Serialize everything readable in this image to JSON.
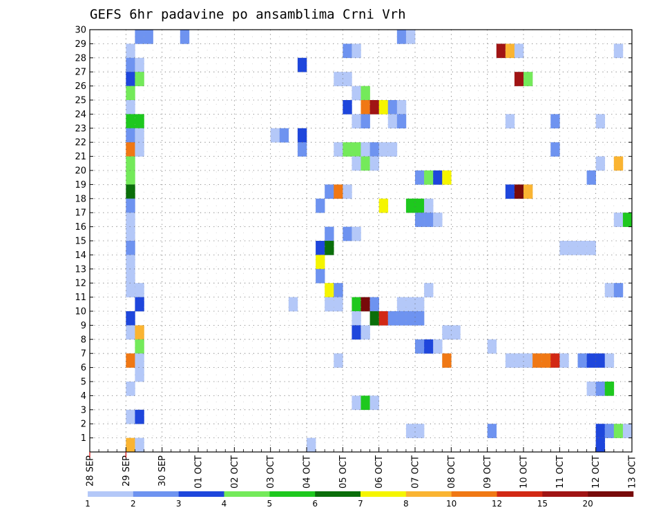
{
  "chart_data": {
    "type": "heatmap",
    "title": "GEFS 6hr padavine po ansamblima Crni Vrh",
    "xlabel": "",
    "ylabel": "",
    "x_ticks": [
      "28 SEP",
      "29 SEP",
      "30 SEP",
      "01 OCT",
      "02 OCT",
      "03 OCT",
      "04 OCT",
      "05 OCT",
      "06 OCT",
      "07 OCT",
      "08 OCT",
      "09 OCT",
      "10 OCT",
      "11 OCT",
      "12 OCT",
      "13 OCT"
    ],
    "y_ticks": [
      "1",
      "2",
      "3",
      "4",
      "5",
      "6",
      "7",
      "8",
      "9",
      "10",
      "11",
      "12",
      "13",
      "14",
      "15",
      "16",
      "17",
      "18",
      "19",
      "20",
      "21",
      "22",
      "23",
      "24",
      "25",
      "26",
      "27",
      "28",
      "29",
      "30"
    ],
    "y_range": [
      0,
      30
    ],
    "grid": true,
    "colorbar_labels": [
      "1",
      "2",
      "3",
      "4",
      "5",
      "6",
      "7",
      "8",
      "10",
      "12",
      "15",
      "20"
    ],
    "colorbar_colors": [
      "#b4c8f8",
      "#6e93f0",
      "#1e46dc",
      "#74ea5a",
      "#1ec81e",
      "#0a6e0a",
      "#f5f500",
      "#fab432",
      "#f07814",
      "#d22814",
      "#a01414",
      "#780a0a"
    ],
    "note": "cells: member (y), 6-hourly step (x from 29 SEP 00z), intensity class index into colorbar",
    "cells": [
      [
        30,
        1,
        1
      ],
      [
        30,
        2,
        1
      ],
      [
        30,
        6,
        1
      ],
      [
        30,
        30,
        1
      ],
      [
        30,
        31,
        0
      ],
      [
        29,
        0,
        0
      ],
      [
        29,
        24,
        1
      ],
      [
        29,
        25,
        0
      ],
      [
        29,
        41,
        10
      ],
      [
        29,
        42,
        7
      ],
      [
        29,
        43,
        0
      ],
      [
        29,
        54,
        0
      ],
      [
        29,
        58,
        4
      ],
      [
        29,
        59,
        11
      ],
      [
        29,
        60,
        10
      ],
      [
        28,
        0,
        1
      ],
      [
        28,
        1,
        0
      ],
      [
        28,
        19,
        2
      ],
      [
        27,
        0,
        2
      ],
      [
        27,
        1,
        3
      ],
      [
        27,
        23,
        0
      ],
      [
        27,
        24,
        0
      ],
      [
        27,
        43,
        10
      ],
      [
        27,
        44,
        3
      ],
      [
        27,
        60,
        0
      ],
      [
        26,
        0,
        3
      ],
      [
        26,
        25,
        0
      ],
      [
        26,
        26,
        3
      ],
      [
        25,
        0,
        0
      ],
      [
        25,
        24,
        2
      ],
      [
        25,
        26,
        8
      ],
      [
        25,
        27,
        10
      ],
      [
        25,
        28,
        6
      ],
      [
        25,
        29,
        1
      ],
      [
        25,
        30,
        0
      ],
      [
        24,
        0,
        4
      ],
      [
        24,
        1,
        4
      ],
      [
        24,
        25,
        0
      ],
      [
        24,
        26,
        1
      ],
      [
        24,
        29,
        0
      ],
      [
        24,
        30,
        1
      ],
      [
        24,
        42,
        0
      ],
      [
        24,
        47,
        1
      ],
      [
        24,
        52,
        0
      ],
      [
        23,
        0,
        1
      ],
      [
        23,
        1,
        0
      ],
      [
        23,
        16,
        0
      ],
      [
        23,
        17,
        1
      ],
      [
        23,
        19,
        2
      ],
      [
        22,
        0,
        8
      ],
      [
        22,
        1,
        0
      ],
      [
        22,
        19,
        1
      ],
      [
        22,
        23,
        0
      ],
      [
        22,
        24,
        3
      ],
      [
        22,
        25,
        3
      ],
      [
        22,
        26,
        0
      ],
      [
        22,
        27,
        1
      ],
      [
        22,
        28,
        0
      ],
      [
        22,
        29,
        0
      ],
      [
        22,
        47,
        1
      ],
      [
        21,
        0,
        3
      ],
      [
        21,
        25,
        0
      ],
      [
        21,
        26,
        3
      ],
      [
        21,
        27,
        0
      ],
      [
        21,
        52,
        0
      ],
      [
        21,
        54,
        7
      ],
      [
        20,
        0,
        3
      ],
      [
        20,
        32,
        1
      ],
      [
        20,
        33,
        3
      ],
      [
        20,
        34,
        2
      ],
      [
        20,
        35,
        6
      ],
      [
        20,
        51,
        1
      ],
      [
        20,
        56,
        0
      ],
      [
        19,
        0,
        5
      ],
      [
        19,
        22,
        1
      ],
      [
        19,
        23,
        8
      ],
      [
        19,
        24,
        0
      ],
      [
        19,
        42,
        2
      ],
      [
        19,
        43,
        11
      ],
      [
        19,
        44,
        7
      ],
      [
        18,
        0,
        1
      ],
      [
        18,
        21,
        1
      ],
      [
        18,
        28,
        6
      ],
      [
        18,
        31,
        4
      ],
      [
        18,
        32,
        4
      ],
      [
        18,
        33,
        0
      ],
      [
        17,
        0,
        0
      ],
      [
        17,
        32,
        1
      ],
      [
        17,
        33,
        1
      ],
      [
        17,
        34,
        0
      ],
      [
        17,
        54,
        0
      ],
      [
        17,
        55,
        4
      ],
      [
        16,
        0,
        0
      ],
      [
        16,
        22,
        1
      ],
      [
        16,
        24,
        1
      ],
      [
        16,
        25,
        0
      ],
      [
        15,
        0,
        1
      ],
      [
        15,
        21,
        2
      ],
      [
        15,
        22,
        5
      ],
      [
        15,
        48,
        0
      ],
      [
        15,
        49,
        0
      ],
      [
        15,
        50,
        0
      ],
      [
        15,
        51,
        0
      ],
      [
        14,
        0,
        0
      ],
      [
        14,
        21,
        6
      ],
      [
        13,
        0,
        0
      ],
      [
        13,
        21,
        1
      ],
      [
        12,
        0,
        0
      ],
      [
        12,
        1,
        0
      ],
      [
        12,
        22,
        6
      ],
      [
        12,
        23,
        1
      ],
      [
        12,
        33,
        0
      ],
      [
        12,
        53,
        0
      ],
      [
        12,
        54,
        1
      ],
      [
        11,
        1,
        2
      ],
      [
        11,
        18,
        0
      ],
      [
        11,
        22,
        0
      ],
      [
        11,
        23,
        0
      ],
      [
        11,
        25,
        4
      ],
      [
        11,
        26,
        11
      ],
      [
        11,
        27,
        1
      ],
      [
        11,
        30,
        0
      ],
      [
        11,
        31,
        0
      ],
      [
        11,
        32,
        0
      ],
      [
        10,
        0,
        2
      ],
      [
        10,
        25,
        0
      ],
      [
        10,
        27,
        5
      ],
      [
        10,
        28,
        9
      ],
      [
        10,
        29,
        1
      ],
      [
        10,
        30,
        1
      ],
      [
        10,
        31,
        1
      ],
      [
        10,
        32,
        1
      ],
      [
        10,
        59,
        2
      ],
      [
        10,
        60,
        1
      ],
      [
        9,
        0,
        0
      ],
      [
        9,
        1,
        7
      ],
      [
        9,
        25,
        2
      ],
      [
        9,
        26,
        0
      ],
      [
        9,
        35,
        0
      ],
      [
        9,
        36,
        0
      ],
      [
        8,
        1,
        3
      ],
      [
        8,
        32,
        1
      ],
      [
        8,
        33,
        2
      ],
      [
        8,
        34,
        0
      ],
      [
        8,
        40,
        0
      ],
      [
        7,
        0,
        8
      ],
      [
        7,
        1,
        0
      ],
      [
        7,
        23,
        0
      ],
      [
        7,
        35,
        8
      ],
      [
        7,
        42,
        0
      ],
      [
        7,
        43,
        0
      ],
      [
        7,
        44,
        0
      ],
      [
        7,
        45,
        8
      ],
      [
        7,
        46,
        8
      ],
      [
        7,
        47,
        9
      ],
      [
        7,
        48,
        0
      ],
      [
        7,
        50,
        1
      ],
      [
        7,
        51,
        2
      ],
      [
        7,
        52,
        2
      ],
      [
        7,
        53,
        0
      ],
      [
        6,
        1,
        0
      ],
      [
        5,
        0,
        0
      ],
      [
        5,
        51,
        0
      ],
      [
        5,
        52,
        1
      ],
      [
        5,
        53,
        4
      ],
      [
        5,
        57,
        4
      ],
      [
        4,
        25,
        0
      ],
      [
        4,
        26,
        4
      ],
      [
        4,
        27,
        0
      ],
      [
        3,
        0,
        0
      ],
      [
        3,
        1,
        2
      ],
      [
        2,
        31,
        0
      ],
      [
        2,
        32,
        0
      ],
      [
        2,
        40,
        1
      ],
      [
        2,
        52,
        2
      ],
      [
        2,
        53,
        1
      ],
      [
        2,
        54,
        3
      ],
      [
        2,
        55,
        0
      ],
      [
        1,
        0,
        7
      ],
      [
        1,
        1,
        0
      ],
      [
        1,
        20,
        0
      ],
      [
        1,
        52,
        2
      ]
    ]
  }
}
